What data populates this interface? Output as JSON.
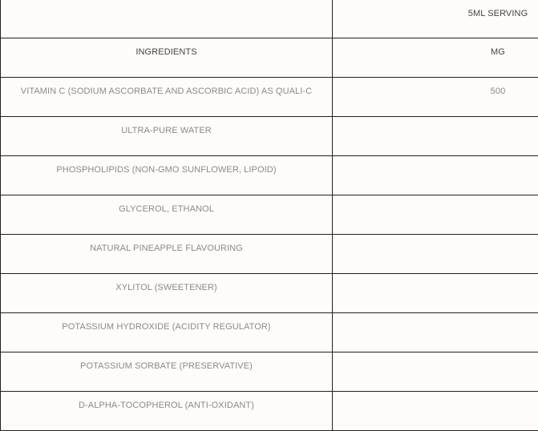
{
  "table": {
    "top_header": [
      "",
      "5ML SERVING"
    ],
    "column_headers": [
      "INGREDIENTS",
      "MG"
    ],
    "rows": [
      {
        "ingredient": "VITAMIN C (SODIUM ASCORBATE AND ASCORBIC ACID) AS QUALI-C",
        "mg": "500"
      },
      {
        "ingredient": "ULTRA-PURE WATER",
        "mg": ""
      },
      {
        "ingredient": "PHOSPHOLIPIDS (NON-GMO SUNFLOWER, LIPOID)",
        "mg": ""
      },
      {
        "ingredient": "GLYCEROL, ETHANOL",
        "mg": ""
      },
      {
        "ingredient": "NATURAL PINEAPPLE FLAVOURING",
        "mg": ""
      },
      {
        "ingredient": "XYLITOL (SWEETENER)",
        "mg": ""
      },
      {
        "ingredient": "POTASSIUM HYDROXIDE (ACIDITY REGULATOR)",
        "mg": ""
      },
      {
        "ingredient": "POTASSIUM SORBATE (PRESERVATIVE)",
        "mg": ""
      },
      {
        "ingredient": "D-ALPHA-TOCOPHEROL (ANTI-OXIDANT)",
        "mg": ""
      }
    ]
  }
}
